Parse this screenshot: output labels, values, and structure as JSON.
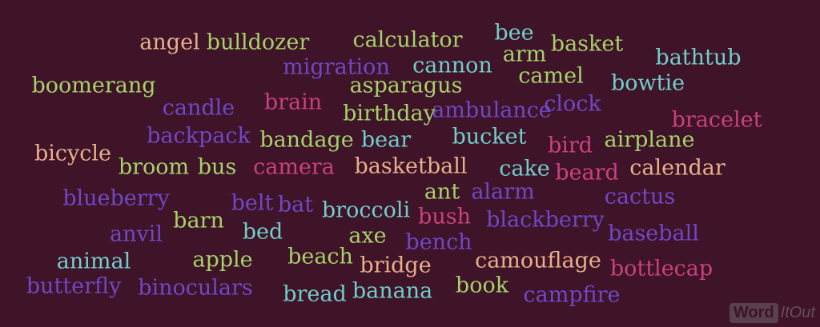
{
  "colors": {
    "background": "#3f1328",
    "green": "#a6d26b",
    "teal": "#70cfcb",
    "purple": "#7048c6",
    "pink": "#c9427e",
    "peach": "#e8b08a"
  },
  "words": [
    {
      "text": "angel",
      "color": "#e8b08a"
    },
    {
      "text": "bulldozer",
      "color": "#a6d26b"
    },
    {
      "text": "calculator",
      "color": "#a6d26b"
    },
    {
      "text": "bee",
      "color": "#70cfcb"
    },
    {
      "text": "basket",
      "color": "#a6d26b"
    },
    {
      "text": "arm",
      "color": "#a6d26b"
    },
    {
      "text": "bathtub",
      "color": "#70cfcb"
    },
    {
      "text": "migration",
      "color": "#7048c6"
    },
    {
      "text": "cannon",
      "color": "#70cfcb"
    },
    {
      "text": "camel",
      "color": "#a6d26b"
    },
    {
      "text": "boomerang",
      "color": "#a6d26b"
    },
    {
      "text": "asparagus",
      "color": "#a6d26b"
    },
    {
      "text": "bowtie",
      "color": "#70cfcb"
    },
    {
      "text": "candle",
      "color": "#7048c6"
    },
    {
      "text": "brain",
      "color": "#c9427e"
    },
    {
      "text": "birthday",
      "color": "#a6d26b"
    },
    {
      "text": "ambulance",
      "color": "#7048c6"
    },
    {
      "text": "clock",
      "color": "#7048c6"
    },
    {
      "text": "bracelet",
      "color": "#c9427e"
    },
    {
      "text": "backpack",
      "color": "#7048c6"
    },
    {
      "text": "bandage",
      "color": "#a6d26b"
    },
    {
      "text": "bear",
      "color": "#70cfcb"
    },
    {
      "text": "bucket",
      "color": "#70cfcb"
    },
    {
      "text": "bird",
      "color": "#c9427e"
    },
    {
      "text": "airplane",
      "color": "#a6d26b"
    },
    {
      "text": "bicycle",
      "color": "#e8b08a"
    },
    {
      "text": "broom",
      "color": "#a6d26b"
    },
    {
      "text": "bus",
      "color": "#a6d26b"
    },
    {
      "text": "camera",
      "color": "#c9427e"
    },
    {
      "text": "basketball",
      "color": "#e8b08a"
    },
    {
      "text": "cake",
      "color": "#70cfcb"
    },
    {
      "text": "beard",
      "color": "#c9427e"
    },
    {
      "text": "calendar",
      "color": "#e8b08a"
    },
    {
      "text": "blueberry",
      "color": "#7048c6"
    },
    {
      "text": "belt",
      "color": "#7048c6"
    },
    {
      "text": "bat",
      "color": "#7048c6"
    },
    {
      "text": "ant",
      "color": "#a6d26b"
    },
    {
      "text": "alarm",
      "color": "#7048c6"
    },
    {
      "text": "cactus",
      "color": "#7048c6"
    },
    {
      "text": "barn",
      "color": "#a6d26b"
    },
    {
      "text": "broccoli",
      "color": "#70cfcb"
    },
    {
      "text": "bush",
      "color": "#c9427e"
    },
    {
      "text": "blackberry",
      "color": "#7048c6"
    },
    {
      "text": "anvil",
      "color": "#7048c6"
    },
    {
      "text": "bed",
      "color": "#70cfcb"
    },
    {
      "text": "axe",
      "color": "#a6d26b"
    },
    {
      "text": "bench",
      "color": "#7048c6"
    },
    {
      "text": "baseball",
      "color": "#7048c6"
    },
    {
      "text": "animal",
      "color": "#70cfcb"
    },
    {
      "text": "apple",
      "color": "#a6d26b"
    },
    {
      "text": "beach",
      "color": "#a6d26b"
    },
    {
      "text": "bridge",
      "color": "#e8b08a"
    },
    {
      "text": "camouflage",
      "color": "#e8b08a"
    },
    {
      "text": "bottlecap",
      "color": "#c9427e"
    },
    {
      "text": "butterfly",
      "color": "#7048c6"
    },
    {
      "text": "binoculars",
      "color": "#7048c6"
    },
    {
      "text": "bread",
      "color": "#70cfcb"
    },
    {
      "text": "banana",
      "color": "#70cfcb"
    },
    {
      "text": "book",
      "color": "#a6d26b"
    },
    {
      "text": "campfire",
      "color": "#7048c6"
    }
  ],
  "logo": {
    "word": "Word",
    "rest": "ItOut"
  }
}
